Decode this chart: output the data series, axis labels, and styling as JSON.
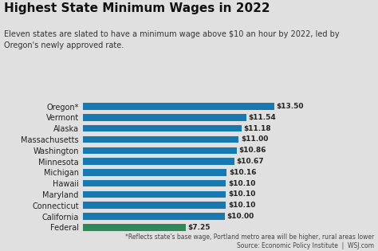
{
  "title": "Highest State Minimum Wages in 2022",
  "subtitle": "Eleven states are slated to have a minimum wage above $10 an hour by 2022, led by\nOregon's newly approved rate.",
  "footnote": "*Reflects state's base wage, Portland metro area will be higher, rural areas lower\nSource: Economic Policy Institute  |  WSJ.com",
  "states": [
    "Oregon*",
    "Vermont",
    "Alaska",
    "Massachusetts",
    "Washington",
    "Minnesota",
    "Michigan",
    "Hawaii",
    "Maryland",
    "Connecticut",
    "California",
    "Federal"
  ],
  "values": [
    13.5,
    11.54,
    11.18,
    11.0,
    10.86,
    10.67,
    10.16,
    10.1,
    10.1,
    10.1,
    10.0,
    7.25
  ],
  "labels": [
    "$13.50",
    "$11.54",
    "$11.18",
    "$11.00",
    "$10.86",
    "$10.67",
    "$10.16",
    "$10.10",
    "$10.10",
    "$10.10",
    "$10.00",
    "$7.25"
  ],
  "bar_colors": [
    "#1878b0",
    "#1878b0",
    "#1878b0",
    "#1878b0",
    "#1878b0",
    "#1878b0",
    "#1878b0",
    "#1878b0",
    "#1878b0",
    "#1878b0",
    "#1878b0",
    "#2e8b57"
  ],
  "background_color": "#e0e0e0",
  "title_fontsize": 11,
  "subtitle_fontsize": 7,
  "label_fontsize": 6.5,
  "footnote_fontsize": 5.5,
  "xlim": [
    0,
    15.5
  ]
}
